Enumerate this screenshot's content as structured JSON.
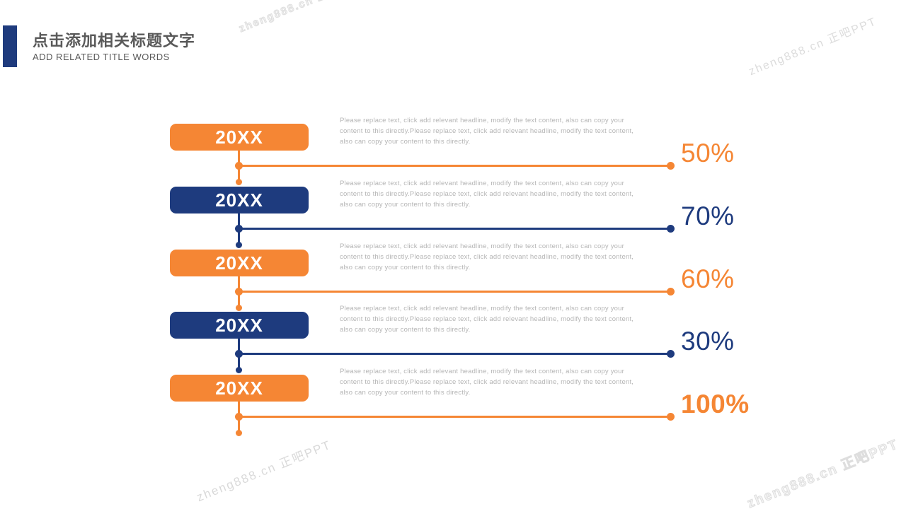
{
  "header": {
    "title": "点击添加相关标题文字",
    "subtitle": "ADD RELATED TITLE WORDS"
  },
  "watermark": {
    "text": "zheng888.cn 正吧PPT"
  },
  "colors": {
    "orange": "#F58634",
    "navy": "#1E3B7E",
    "title_gray": "#595959",
    "body_gray": "#B5B5B5",
    "watermark_gray": "#DCDCDC"
  },
  "rows": [
    {
      "year": "20XX",
      "color": "orange",
      "percent": "50%",
      "percent_bold": false,
      "text": "Please replace text, click add relevant headline, modify the text content, also can copy your content to this directly.Please replace text, click add relevant headline, modify the text content, also can copy your content to this directly."
    },
    {
      "year": "20XX",
      "color": "navy",
      "percent": "70%",
      "percent_bold": false,
      "text": "Please replace text, click add relevant headline, modify the text content, also can copy your content to this directly.Please replace text, click add relevant headline, modify the text content, also can copy your content to this directly."
    },
    {
      "year": "20XX",
      "color": "orange",
      "percent": "60%",
      "percent_bold": false,
      "text": "Please replace text, click add relevant headline, modify the text content, also can copy your content to this directly.Please replace text, click add relevant headline, modify the text content, also can copy your content to this directly."
    },
    {
      "year": "20XX",
      "color": "navy",
      "percent": "30%",
      "percent_bold": false,
      "text": "Please replace text, click add relevant headline, modify the text content, also can copy your content to this directly.Please replace text, click add relevant headline, modify the text content, also can copy your content to this directly."
    },
    {
      "year": "20XX",
      "color": "orange",
      "percent": "100%",
      "percent_bold": true,
      "text": "Please replace text, click add relevant headline, modify the text content, also can copy your content to this directly.Please replace text, click add relevant headline, modify the text content, also can copy your content to this directly."
    }
  ]
}
